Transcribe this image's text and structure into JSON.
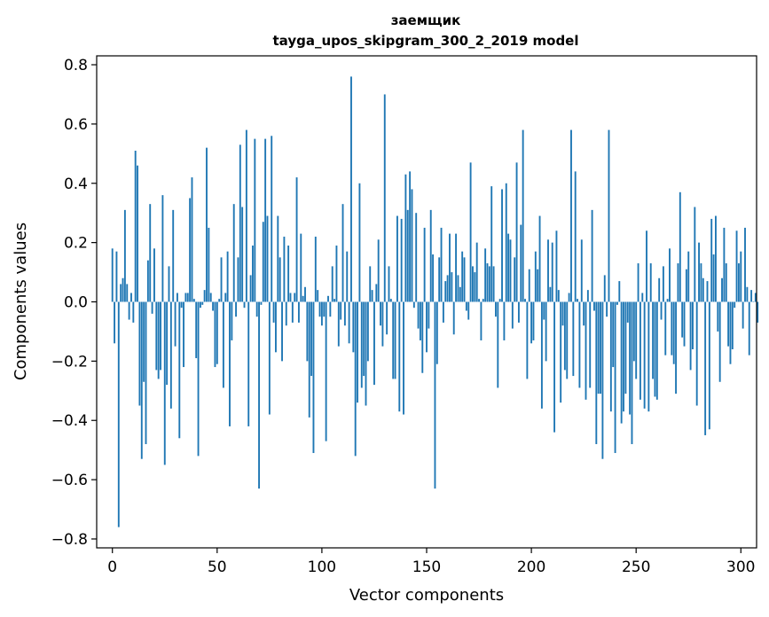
{
  "chart_data": {
    "type": "bar",
    "title": "заемщик",
    "subtitle": "tayga_upos_skipgram_300_2_2019 model",
    "xlabel": "Vector components",
    "ylabel": "Components values",
    "xlim": [
      -7.5,
      307.5
    ],
    "ylim": [
      -0.83,
      0.83
    ],
    "xticks": [
      0,
      50,
      100,
      150,
      200,
      250,
      300
    ],
    "yticks": [
      -0.8,
      -0.6,
      -0.4,
      -0.2,
      0.0,
      0.2,
      0.4,
      0.6,
      0.8
    ],
    "ytick_labels": [
      "−0.8",
      "−0.6",
      "−0.4",
      "−0.2",
      "0.0",
      "0.2",
      "0.4",
      "0.6",
      "0.8"
    ],
    "bar_color": "#1f77b4",
    "grid": false,
    "values": [
      0.18,
      -0.14,
      0.17,
      -0.76,
      0.06,
      0.08,
      0.31,
      0.06,
      -0.06,
      0.03,
      -0.07,
      0.51,
      0.46,
      -0.35,
      -0.53,
      -0.27,
      -0.48,
      0.14,
      0.33,
      -0.04,
      0.18,
      -0.23,
      -0.26,
      -0.23,
      0.36,
      -0.55,
      -0.28,
      0.12,
      -0.36,
      0.31,
      -0.15,
      0.03,
      -0.46,
      -0.02,
      -0.22,
      0.03,
      0.03,
      0.35,
      0.42,
      0.01,
      -0.19,
      -0.52,
      -0.02,
      -0.01,
      0.04,
      0.52,
      0.25,
      0.03,
      -0.03,
      -0.22,
      -0.21,
      0.01,
      0.15,
      -0.29,
      0.03,
      0.17,
      -0.42,
      -0.13,
      0.33,
      -0.05,
      0.15,
      0.53,
      0.32,
      -0.02,
      0.58,
      -0.42,
      0.09,
      0.19,
      0.55,
      -0.05,
      -0.63,
      -0.01,
      0.27,
      0.55,
      0.29,
      -0.38,
      0.56,
      -0.07,
      -0.17,
      0.29,
      0.15,
      -0.2,
      0.22,
      -0.08,
      0.19,
      0.03,
      -0.07,
      0.03,
      0.42,
      -0.07,
      0.23,
      0.02,
      0.05,
      -0.2,
      -0.39,
      -0.25,
      -0.51,
      0.22,
      0.04,
      -0.05,
      -0.08,
      -0.05,
      -0.47,
      0.02,
      -0.05,
      0.12,
      0.01,
      0.19,
      -0.15,
      -0.06,
      0.33,
      -0.08,
      0.17,
      -0.14,
      0.76,
      -0.17,
      -0.52,
      -0.34,
      0.4,
      -0.29,
      -0.25,
      -0.35,
      -0.2,
      0.12,
      0.04,
      -0.28,
      0.06,
      0.21,
      -0.08,
      -0.15,
      0.7,
      -0.11,
      0.12,
      0.01,
      -0.26,
      -0.26,
      0.29,
      -0.37,
      0.28,
      -0.38,
      0.43,
      0.31,
      0.44,
      0.38,
      -0.02,
      0.3,
      -0.09,
      -0.13,
      -0.24,
      0.25,
      -0.17,
      -0.09,
      0.31,
      0.16,
      -0.63,
      -0.21,
      0.15,
      0.25,
      -0.07,
      0.07,
      0.09,
      0.23,
      0.1,
      -0.11,
      0.23,
      0.09,
      0.05,
      0.17,
      0.15,
      -0.03,
      -0.06,
      0.47,
      0.12,
      0.1,
      0.2,
      0.01,
      -0.13,
      0.01,
      0.18,
      0.13,
      0.12,
      0.39,
      0.12,
      -0.05,
      -0.29,
      0.01,
      0.38,
      -0.13,
      0.4,
      0.23,
      0.21,
      -0.09,
      0.15,
      0.47,
      -0.07,
      0.26,
      0.58,
      0.01,
      -0.26,
      0.11,
      -0.14,
      -0.13,
      0.17,
      0.11,
      0.29,
      -0.36,
      -0.06,
      -0.2,
      0.21,
      0.05,
      0.2,
      -0.44,
      0.24,
      0.04,
      -0.34,
      -0.08,
      -0.23,
      -0.26,
      0.03,
      0.58,
      -0.25,
      0.44,
      0.01,
      -0.29,
      0.21,
      -0.08,
      -0.33,
      0.04,
      -0.29,
      0.31,
      -0.03,
      -0.48,
      -0.31,
      -0.31,
      -0.53,
      0.09,
      -0.05,
      0.58,
      -0.37,
      -0.22,
      -0.51,
      -0.01,
      0.07,
      -0.41,
      -0.37,
      -0.31,
      -0.07,
      -0.38,
      -0.48,
      -0.2,
      -0.26,
      0.13,
      -0.33,
      0.03,
      -0.36,
      0.24,
      -0.37,
      0.13,
      -0.26,
      -0.32,
      -0.33,
      0.08,
      -0.06,
      0.12,
      -0.18,
      0.01,
      0.18,
      -0.18,
      -0.21,
      -0.31,
      0.13,
      0.37,
      -0.12,
      -0.15,
      0.11,
      0.17,
      -0.23,
      -0.16,
      0.32,
      -0.35,
      0.2,
      0.13,
      0.08,
      -0.45,
      0.07,
      -0.43,
      0.28,
      0.16,
      0.29,
      -0.1,
      -0.27,
      0.08,
      0.25,
      0.13,
      -0.15,
      -0.21,
      -0.16,
      -0.02,
      0.24,
      0.13,
      0.17,
      -0.09,
      0.25,
      0.05,
      -0.18,
      0.04,
      0.0,
      0.03,
      -0.07
    ]
  }
}
